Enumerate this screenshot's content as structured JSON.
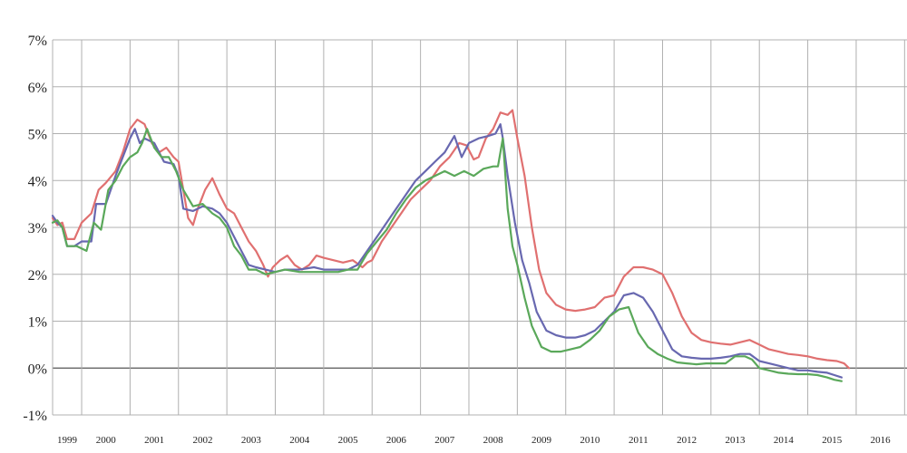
{
  "chart_data": {
    "type": "line",
    "title": "",
    "xlabel": "",
    "ylabel": "",
    "grid": true,
    "x_range": [
      1998.4,
      2016.05
    ],
    "ylim": [
      -1,
      7
    ],
    "y_ticks": [
      -1,
      0,
      1,
      2,
      3,
      4,
      5,
      6,
      7
    ],
    "y_tick_labels": [
      "-1%",
      "0%",
      "1%",
      "2%",
      "3%",
      "4%",
      "5%",
      "6%",
      "7%"
    ],
    "x_tick_labels": [
      "1999",
      "2000",
      "2001",
      "2002",
      "2003",
      "2004",
      "2005",
      "2006",
      "2007",
      "2008",
      "2009",
      "2010",
      "2011",
      "2012",
      "2013",
      "2014",
      "2015",
      "2016"
    ],
    "colors": {
      "red": "#e07070",
      "blue": "#6868b0",
      "green": "#5aa85a",
      "grid": "#b0b0b0",
      "zero_line": "#555555"
    },
    "series": [
      {
        "color": "red",
        "points": [
          [
            1998.4,
            3.2
          ],
          [
            1998.5,
            3.05
          ],
          [
            1998.6,
            3.1
          ],
          [
            1998.7,
            2.75
          ],
          [
            1998.85,
            2.75
          ],
          [
            1999.0,
            3.1
          ],
          [
            1999.2,
            3.3
          ],
          [
            1999.35,
            3.8
          ],
          [
            1999.5,
            3.95
          ],
          [
            1999.7,
            4.2
          ],
          [
            1999.85,
            4.6
          ],
          [
            2000.0,
            5.1
          ],
          [
            2000.15,
            5.3
          ],
          [
            2000.3,
            5.2
          ],
          [
            2000.45,
            4.8
          ],
          [
            2000.6,
            4.6
          ],
          [
            2000.75,
            4.7
          ],
          [
            2000.9,
            4.5
          ],
          [
            2001.0,
            4.4
          ],
          [
            2001.1,
            3.8
          ],
          [
            2001.2,
            3.2
          ],
          [
            2001.3,
            3.05
          ],
          [
            2001.4,
            3.4
          ],
          [
            2001.55,
            3.8
          ],
          [
            2001.7,
            4.05
          ],
          [
            2001.85,
            3.7
          ],
          [
            2002.0,
            3.4
          ],
          [
            2002.15,
            3.3
          ],
          [
            2002.3,
            3.0
          ],
          [
            2002.45,
            2.7
          ],
          [
            2002.6,
            2.5
          ],
          [
            2002.75,
            2.2
          ],
          [
            2002.85,
            1.95
          ],
          [
            2002.95,
            2.15
          ],
          [
            2003.1,
            2.3
          ],
          [
            2003.25,
            2.4
          ],
          [
            2003.4,
            2.2
          ],
          [
            2003.55,
            2.1
          ],
          [
            2003.7,
            2.2
          ],
          [
            2003.85,
            2.4
          ],
          [
            2004.0,
            2.35
          ],
          [
            2004.2,
            2.3
          ],
          [
            2004.4,
            2.25
          ],
          [
            2004.6,
            2.3
          ],
          [
            2004.8,
            2.15
          ],
          [
            2004.9,
            2.25
          ],
          [
            2005.0,
            2.3
          ],
          [
            2005.2,
            2.7
          ],
          [
            2005.4,
            3.0
          ],
          [
            2005.6,
            3.3
          ],
          [
            2005.8,
            3.6
          ],
          [
            2006.0,
            3.8
          ],
          [
            2006.2,
            4.0
          ],
          [
            2006.4,
            4.3
          ],
          [
            2006.6,
            4.5
          ],
          [
            2006.8,
            4.8
          ],
          [
            2006.95,
            4.75
          ],
          [
            2007.1,
            4.45
          ],
          [
            2007.2,
            4.5
          ],
          [
            2007.35,
            4.9
          ],
          [
            2007.5,
            5.1
          ],
          [
            2007.65,
            5.45
          ],
          [
            2007.8,
            5.4
          ],
          [
            2007.9,
            5.5
          ],
          [
            2008.0,
            4.9
          ],
          [
            2008.15,
            4.1
          ],
          [
            2008.3,
            3.0
          ],
          [
            2008.45,
            2.1
          ],
          [
            2008.6,
            1.6
          ],
          [
            2008.8,
            1.35
          ],
          [
            2009.0,
            1.25
          ],
          [
            2009.2,
            1.22
          ],
          [
            2009.4,
            1.25
          ],
          [
            2009.6,
            1.3
          ],
          [
            2009.8,
            1.5
          ],
          [
            2010.0,
            1.55
          ],
          [
            2010.2,
            1.95
          ],
          [
            2010.4,
            2.15
          ],
          [
            2010.6,
            2.15
          ],
          [
            2010.8,
            2.1
          ],
          [
            2011.0,
            2.0
          ],
          [
            2011.2,
            1.6
          ],
          [
            2011.4,
            1.1
          ],
          [
            2011.6,
            0.75
          ],
          [
            2011.8,
            0.6
          ],
          [
            2012.0,
            0.55
          ],
          [
            2012.2,
            0.52
          ],
          [
            2012.4,
            0.5
          ],
          [
            2012.6,
            0.55
          ],
          [
            2012.8,
            0.6
          ],
          [
            2013.0,
            0.5
          ],
          [
            2013.2,
            0.4
          ],
          [
            2013.4,
            0.35
          ],
          [
            2013.6,
            0.3
          ],
          [
            2013.8,
            0.28
          ],
          [
            2014.0,
            0.25
          ],
          [
            2014.2,
            0.2
          ],
          [
            2014.4,
            0.17
          ],
          [
            2014.6,
            0.15
          ],
          [
            2014.75,
            0.1
          ],
          [
            2014.85,
            0.0
          ]
        ]
      },
      {
        "color": "blue",
        "points": [
          [
            1998.4,
            3.25
          ],
          [
            1998.5,
            3.1
          ],
          [
            1998.6,
            3.0
          ],
          [
            1998.7,
            2.6
          ],
          [
            1998.85,
            2.6
          ],
          [
            1999.0,
            2.7
          ],
          [
            1999.2,
            2.7
          ],
          [
            1999.3,
            3.5
          ],
          [
            1999.5,
            3.5
          ],
          [
            1999.7,
            4.1
          ],
          [
            1999.85,
            4.5
          ],
          [
            2000.0,
            4.9
          ],
          [
            2000.1,
            5.1
          ],
          [
            2000.2,
            4.8
          ],
          [
            2000.3,
            4.9
          ],
          [
            2000.5,
            4.8
          ],
          [
            2000.7,
            4.4
          ],
          [
            2000.9,
            4.35
          ],
          [
            2001.0,
            4.1
          ],
          [
            2001.1,
            3.4
          ],
          [
            2001.3,
            3.35
          ],
          [
            2001.5,
            3.45
          ],
          [
            2001.7,
            3.4
          ],
          [
            2001.85,
            3.3
          ],
          [
            2002.0,
            3.1
          ],
          [
            2002.15,
            2.8
          ],
          [
            2002.3,
            2.5
          ],
          [
            2002.45,
            2.2
          ],
          [
            2002.6,
            2.15
          ],
          [
            2002.8,
            2.1
          ],
          [
            2003.0,
            2.05
          ],
          [
            2003.2,
            2.1
          ],
          [
            2003.5,
            2.1
          ],
          [
            2003.8,
            2.15
          ],
          [
            2004.0,
            2.1
          ],
          [
            2004.3,
            2.1
          ],
          [
            2004.5,
            2.1
          ],
          [
            2004.7,
            2.2
          ],
          [
            2004.9,
            2.5
          ],
          [
            2005.1,
            2.8
          ],
          [
            2005.3,
            3.1
          ],
          [
            2005.5,
            3.4
          ],
          [
            2005.7,
            3.7
          ],
          [
            2005.9,
            4.0
          ],
          [
            2006.1,
            4.2
          ],
          [
            2006.3,
            4.4
          ],
          [
            2006.5,
            4.6
          ],
          [
            2006.7,
            4.95
          ],
          [
            2006.85,
            4.5
          ],
          [
            2007.0,
            4.8
          ],
          [
            2007.2,
            4.9
          ],
          [
            2007.4,
            4.95
          ],
          [
            2007.55,
            5.0
          ],
          [
            2007.65,
            5.2
          ],
          [
            2007.7,
            4.9
          ],
          [
            2007.8,
            4.1
          ],
          [
            2007.95,
            3.1
          ],
          [
            2008.1,
            2.3
          ],
          [
            2008.25,
            1.8
          ],
          [
            2008.4,
            1.2
          ],
          [
            2008.6,
            0.8
          ],
          [
            2008.8,
            0.7
          ],
          [
            2009.0,
            0.65
          ],
          [
            2009.2,
            0.65
          ],
          [
            2009.4,
            0.7
          ],
          [
            2009.6,
            0.8
          ],
          [
            2009.8,
            1.0
          ],
          [
            2010.0,
            1.2
          ],
          [
            2010.2,
            1.55
          ],
          [
            2010.4,
            1.6
          ],
          [
            2010.6,
            1.5
          ],
          [
            2010.8,
            1.2
          ],
          [
            2011.0,
            0.8
          ],
          [
            2011.2,
            0.4
          ],
          [
            2011.4,
            0.25
          ],
          [
            2011.6,
            0.22
          ],
          [
            2011.8,
            0.2
          ],
          [
            2012.0,
            0.2
          ],
          [
            2012.2,
            0.22
          ],
          [
            2012.4,
            0.25
          ],
          [
            2012.6,
            0.3
          ],
          [
            2012.8,
            0.3
          ],
          [
            2013.0,
            0.15
          ],
          [
            2013.2,
            0.1
          ],
          [
            2013.4,
            0.05
          ],
          [
            2013.6,
            0.0
          ],
          [
            2013.8,
            -0.05
          ],
          [
            2014.0,
            -0.05
          ],
          [
            2014.2,
            -0.08
          ],
          [
            2014.4,
            -0.1
          ],
          [
            2014.55,
            -0.15
          ],
          [
            2014.7,
            -0.2
          ]
        ]
      },
      {
        "color": "green",
        "points": [
          [
            1998.4,
            3.1
          ],
          [
            1998.5,
            3.15
          ],
          [
            1998.6,
            3.0
          ],
          [
            1998.7,
            2.6
          ],
          [
            1998.9,
            2.6
          ],
          [
            1999.1,
            2.5
          ],
          [
            1999.25,
            3.1
          ],
          [
            1999.4,
            2.95
          ],
          [
            1999.55,
            3.8
          ],
          [
            1999.7,
            4.0
          ],
          [
            1999.85,
            4.3
          ],
          [
            2000.0,
            4.5
          ],
          [
            2000.15,
            4.6
          ],
          [
            2000.25,
            4.8
          ],
          [
            2000.35,
            5.1
          ],
          [
            2000.5,
            4.7
          ],
          [
            2000.65,
            4.5
          ],
          [
            2000.8,
            4.5
          ],
          [
            2000.95,
            4.2
          ],
          [
            2001.1,
            3.8
          ],
          [
            2001.3,
            3.45
          ],
          [
            2001.5,
            3.5
          ],
          [
            2001.7,
            3.3
          ],
          [
            2001.85,
            3.2
          ],
          [
            2002.0,
            3.0
          ],
          [
            2002.15,
            2.6
          ],
          [
            2002.3,
            2.4
          ],
          [
            2002.45,
            2.1
          ],
          [
            2002.6,
            2.1
          ],
          [
            2002.8,
            2.0
          ],
          [
            2003.0,
            2.05
          ],
          [
            2003.2,
            2.1
          ],
          [
            2003.5,
            2.05
          ],
          [
            2003.8,
            2.05
          ],
          [
            2004.0,
            2.05
          ],
          [
            2004.3,
            2.05
          ],
          [
            2004.5,
            2.1
          ],
          [
            2004.7,
            2.1
          ],
          [
            2004.9,
            2.45
          ],
          [
            2005.1,
            2.7
          ],
          [
            2005.3,
            2.95
          ],
          [
            2005.5,
            3.3
          ],
          [
            2005.7,
            3.6
          ],
          [
            2005.9,
            3.85
          ],
          [
            2006.1,
            4.0
          ],
          [
            2006.3,
            4.1
          ],
          [
            2006.5,
            4.2
          ],
          [
            2006.7,
            4.1
          ],
          [
            2006.9,
            4.2
          ],
          [
            2007.1,
            4.1
          ],
          [
            2007.3,
            4.25
          ],
          [
            2007.5,
            4.3
          ],
          [
            2007.6,
            4.3
          ],
          [
            2007.7,
            4.9
          ],
          [
            2007.8,
            3.4
          ],
          [
            2007.9,
            2.6
          ],
          [
            2008.0,
            2.2
          ],
          [
            2008.15,
            1.5
          ],
          [
            2008.3,
            0.9
          ],
          [
            2008.5,
            0.45
          ],
          [
            2008.7,
            0.35
          ],
          [
            2008.9,
            0.35
          ],
          [
            2009.1,
            0.4
          ],
          [
            2009.3,
            0.45
          ],
          [
            2009.5,
            0.6
          ],
          [
            2009.7,
            0.8
          ],
          [
            2009.9,
            1.1
          ],
          [
            2010.1,
            1.25
          ],
          [
            2010.3,
            1.3
          ],
          [
            2010.5,
            0.75
          ],
          [
            2010.7,
            0.45
          ],
          [
            2010.9,
            0.3
          ],
          [
            2011.1,
            0.2
          ],
          [
            2011.3,
            0.12
          ],
          [
            2011.5,
            0.1
          ],
          [
            2011.7,
            0.08
          ],
          [
            2011.9,
            0.1
          ],
          [
            2012.1,
            0.1
          ],
          [
            2012.3,
            0.1
          ],
          [
            2012.5,
            0.25
          ],
          [
            2012.7,
            0.25
          ],
          [
            2012.85,
            0.18
          ],
          [
            2013.0,
            0.0
          ],
          [
            2013.2,
            -0.05
          ],
          [
            2013.4,
            -0.1
          ],
          [
            2013.6,
            -0.12
          ],
          [
            2013.8,
            -0.13
          ],
          [
            2014.0,
            -0.13
          ],
          [
            2014.2,
            -0.15
          ],
          [
            2014.4,
            -0.2
          ],
          [
            2014.55,
            -0.25
          ],
          [
            2014.7,
            -0.28
          ]
        ]
      }
    ]
  }
}
